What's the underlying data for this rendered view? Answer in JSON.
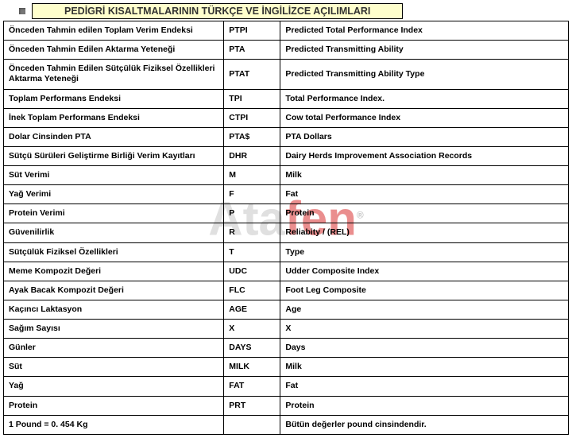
{
  "title": "PEDİGRİ KISALTMALARININ TÜRKÇE VE İNGİLİZCE AÇILIMLARI",
  "watermark": {
    "part1": "Ata",
    "part2": "fen",
    "reg": "®"
  },
  "columns": [
    "turkish",
    "abbr",
    "english"
  ],
  "rows": [
    {
      "turkish": "Önceden Tahmin edilen Toplam Verim Endeksi",
      "abbr": "PTPI",
      "english": "Predicted Total Performance Index"
    },
    {
      "turkish": "Önceden Tahmin Edilen Aktarma Yeteneği",
      "abbr": "PTA",
      "english": "Predicted Transmitting Ability"
    },
    {
      "turkish": "Önceden Tahmin Edilen Sütçülük Fiziksel Özellikleri Aktarma Yeteneği",
      "abbr": "PTAT",
      "english": "Predicted Transmitting Ability Type"
    },
    {
      "turkish": "Toplam Performans Endeksi",
      "abbr": "TPI",
      "english": "Total Performance Index."
    },
    {
      "turkish": "İnek Toplam Performans Endeksi",
      "abbr": "CTPI",
      "english": "Cow total Performance Index"
    },
    {
      "turkish": "Dolar Cinsinden PTA",
      "abbr": "PTA$",
      "english": "PTA Dollars"
    },
    {
      "turkish": "Sütçü Sürüleri Geliştirme Birliği Verim Kayıtları",
      "abbr": "DHR",
      "english": "Dairy Herds Improvement Association Records"
    },
    {
      "turkish": "Süt Verimi",
      "abbr": "M",
      "english": "Milk"
    },
    {
      "turkish": "Yağ Verimi",
      "abbr": "F",
      "english": "Fat"
    },
    {
      "turkish": "Protein Verimi",
      "abbr": "P",
      "english": "Protein"
    },
    {
      "turkish": "Güvenilirlik",
      "abbr": "R",
      "english": "Reliabity / (REL)"
    },
    {
      "turkish": "Sütçülük Fiziksel Özellikleri",
      "abbr": "T",
      "english": "Type"
    },
    {
      "turkish": "Meme Kompozit Değeri",
      "abbr": "UDC",
      "english": "Udder Composite Index"
    },
    {
      "turkish": "Ayak Bacak Kompozit Değeri",
      "abbr": "FLC",
      "english": "Foot Leg Composite"
    },
    {
      "turkish": "Kaçıncı Laktasyon",
      "abbr": "AGE",
      "english": "Age"
    },
    {
      "turkish": "Sağım Sayısı",
      "abbr": "X",
      "english": "X"
    },
    {
      "turkish": "Günler",
      "abbr": "DAYS",
      "english": "Days"
    },
    {
      "turkish": "Süt",
      "abbr": "MILK",
      "english": "Milk"
    },
    {
      "turkish": "Yağ",
      "abbr": "FAT",
      "english": "Fat"
    },
    {
      "turkish": "Protein",
      "abbr": "PRT",
      "english": "Protein"
    },
    {
      "turkish": "1 Pound = 0. 454 Kg",
      "abbr": "",
      "english": "Bütün değerler pound cinsindendir."
    }
  ]
}
